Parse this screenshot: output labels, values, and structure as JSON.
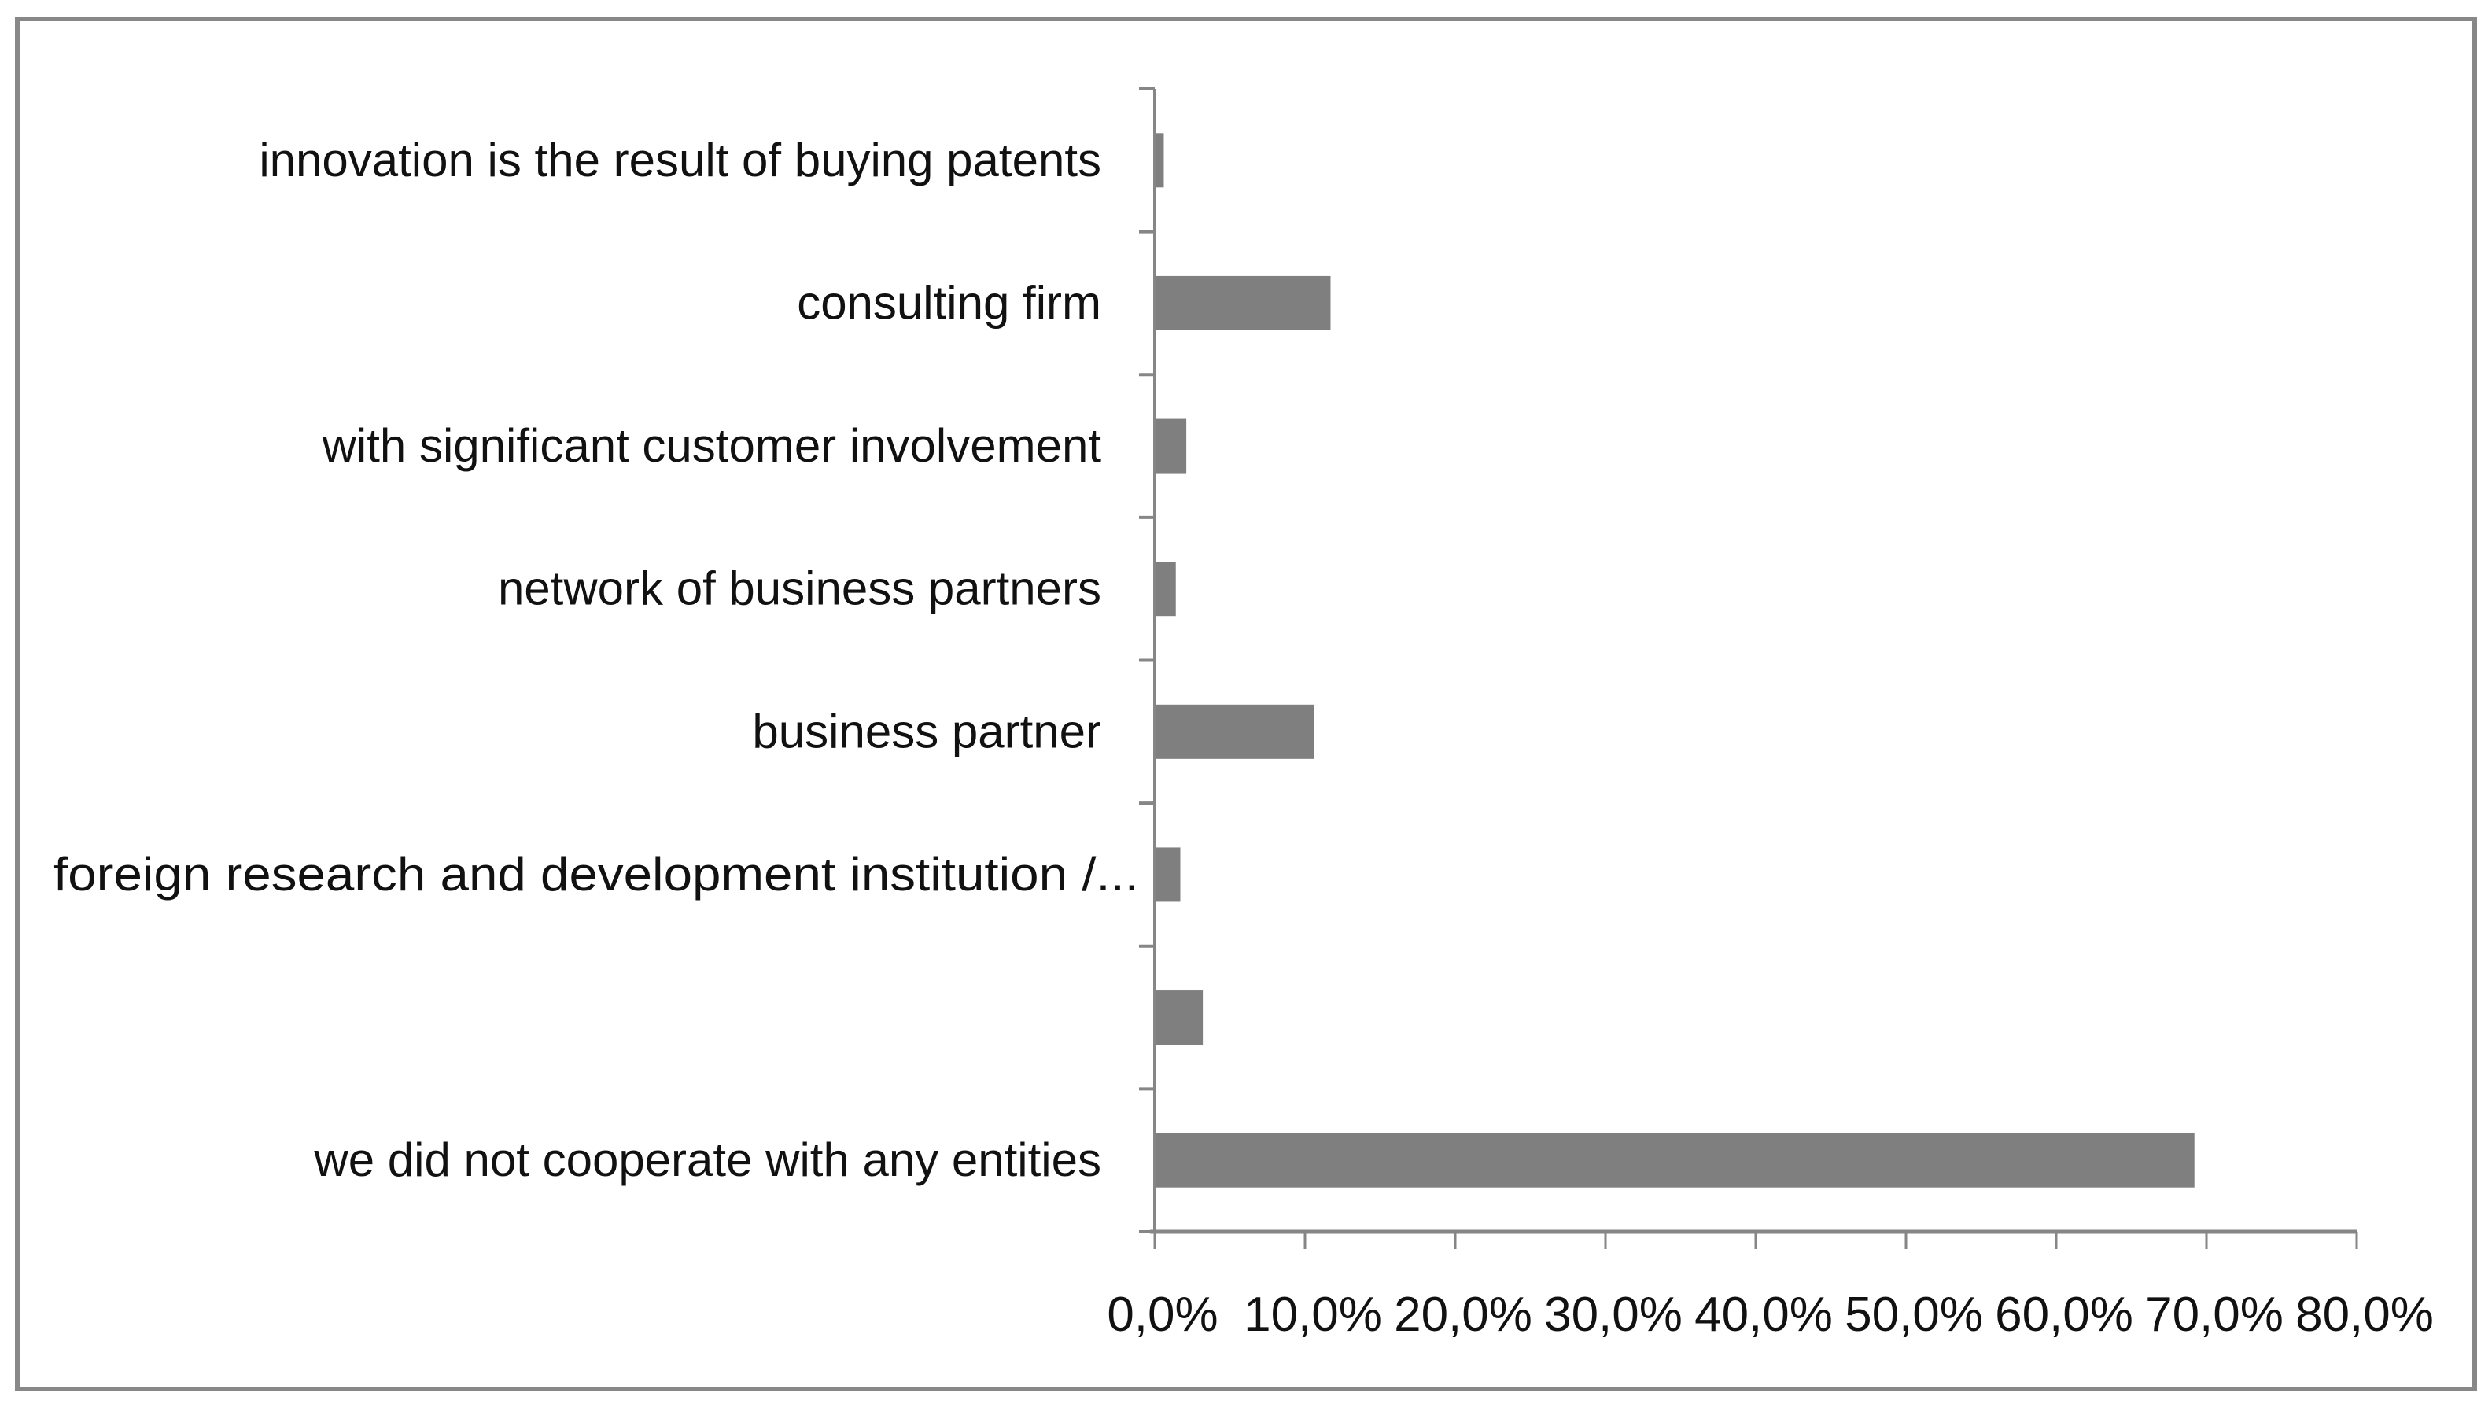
{
  "chart_data": {
    "type": "bar",
    "orientation": "horizontal",
    "title": "",
    "xlabel": "",
    "ylabel": "",
    "categories": [
      "innovation is the result of buying patents",
      "consulting firm",
      "with significant customer involvement",
      "network of business partners",
      "business partner",
      "foreign research  and development institution /...",
      "",
      "we did not cooperate with any entities"
    ],
    "values": [
      0.6,
      11.7,
      2.1,
      1.4,
      10.6,
      1.7,
      3.2,
      69.2
    ],
    "xlim": [
      0,
      80
    ],
    "x_ticks": [
      "0,0%",
      "10,0%",
      "20,0%",
      "30,0%",
      "40,0%",
      "50,0%",
      "60,0%",
      "70,0%",
      "80,0%"
    ],
    "grid": false,
    "legend": "none",
    "bar_color": "#7f7f7f",
    "axis_color": "#868686"
  }
}
